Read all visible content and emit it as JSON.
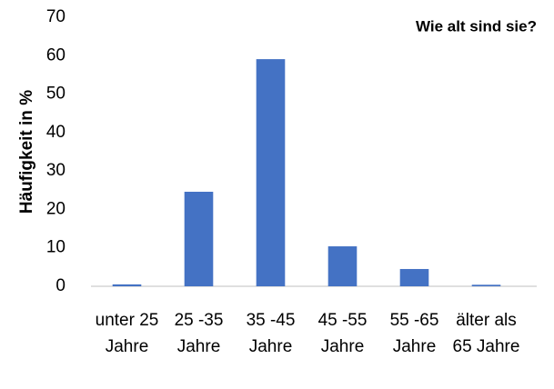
{
  "chart_data": {
    "type": "bar",
    "title": "Wie alt sind sie?",
    "y_label": "Häufigkeit in %",
    "categories": [
      "unter 25 Jahre",
      "25 -35 Jahre",
      "35 -45 Jahre",
      "45 -55 Jahre",
      "55 -65 Jahre",
      "älter als 65 Jahre"
    ],
    "values": [
      0.5,
      24.6,
      59.1,
      10.4,
      4.5,
      0.4
    ],
    "color": "#4472c4",
    "ylim": [
      0,
      70
    ],
    "yticks": [
      0,
      10,
      20,
      30,
      40,
      50,
      60,
      70
    ],
    "grid": false
  }
}
